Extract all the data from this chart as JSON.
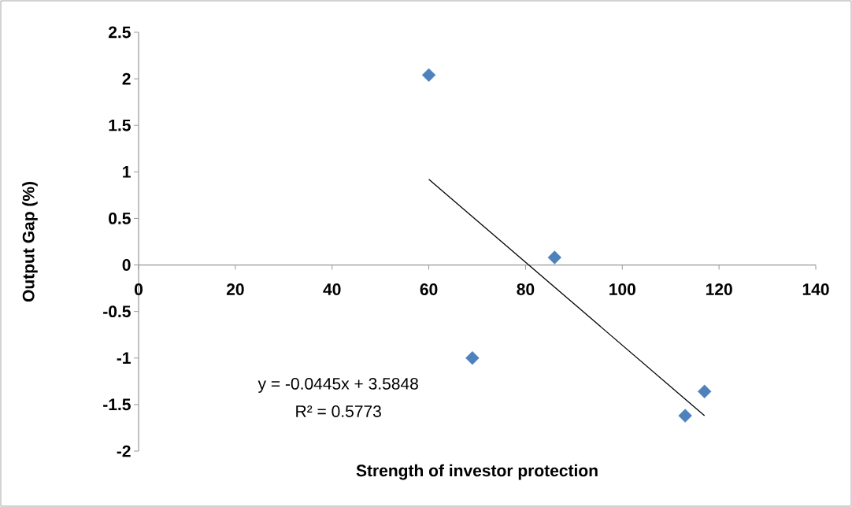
{
  "chart_data": {
    "type": "scatter",
    "xlabel": "Strength of investor protection",
    "ylabel": "Output Gap (%)",
    "series": [
      {
        "color": "#4f81bd",
        "marker": "diamond",
        "x": [
          60,
          69,
          86,
          113,
          117
        ],
        "values": [
          2.04,
          -1.0,
          0.08,
          -1.62,
          -1.36
        ]
      },
      {
        "type": "line",
        "color": "#000000",
        "marker": "none",
        "x": [
          60,
          117
        ],
        "values": [
          0.92,
          -1.62
        ]
      }
    ],
    "xlim": [
      0,
      140
    ],
    "ylim": [
      -2,
      2.5
    ],
    "xticks": [
      0,
      20,
      40,
      60,
      80,
      100,
      120,
      140
    ],
    "yticks": [
      -2,
      -1.5,
      -1,
      -0.5,
      0,
      0.5,
      1,
      1.5,
      2,
      2.5
    ],
    "annotations": [
      "y = -0.0445x + 3.5848",
      "R² = 0.5773"
    ]
  }
}
